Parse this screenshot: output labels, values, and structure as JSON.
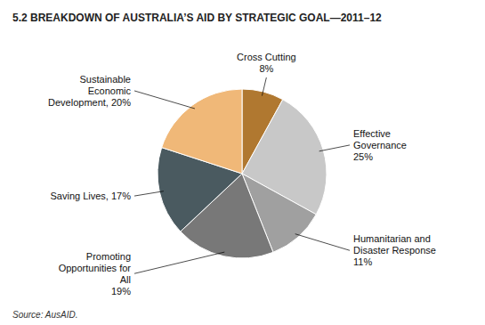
{
  "chart_data": {
    "type": "pie",
    "title": "5.2 BREAKDOWN OF AUSTRALIA’S AID BY STRATEGIC GOAL—2011–12",
    "categories": [
      "Cross Cutting\n8%",
      "Effective\nGovernance\n25%",
      "Humanitarian and\nDisaster Response\n11%",
      "Promoting\nOpportunities for\nAll\n19%",
      "Saving Lives, 17%",
      "Sustainable\nEconomic\nDevelopment, 20%"
    ],
    "values": [
      8,
      25,
      11,
      19,
      17,
      20
    ],
    "colors": [
      "#b07830",
      "#c8c8c8",
      "#a0a0a0",
      "#787878",
      "#4a5a60",
      "#f0b878"
    ],
    "source": "Source: AusAID."
  }
}
